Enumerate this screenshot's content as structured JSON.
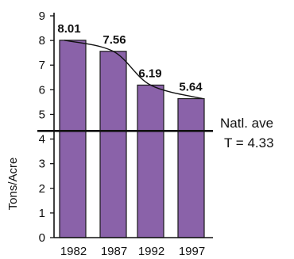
{
  "chart_data": {
    "type": "bar",
    "categories": [
      "1982",
      "1987",
      "1992",
      "1997"
    ],
    "values": [
      8.01,
      7.56,
      6.19,
      5.64
    ],
    "data_labels": [
      "8.01",
      "7.56",
      "6.19",
      "5.64"
    ],
    "title": "",
    "xlabel": "",
    "ylabel": "Tons/Acre",
    "ylim": [
      0,
      9
    ],
    "yticks": [
      "0",
      "1",
      "2",
      "3",
      "4",
      "5",
      "6",
      "7",
      "8",
      "9"
    ],
    "grid": false,
    "trend_line": true,
    "reference_line": {
      "value": 4.33,
      "label_line1": "Natl. ave",
      "label_line2": "T = 4.33"
    },
    "colors": {
      "bar_fill": "#8a62a9",
      "bar_stroke": "#1a1a1a",
      "axis": "#111111",
      "trend": "#111111",
      "reference": "#111111"
    }
  }
}
